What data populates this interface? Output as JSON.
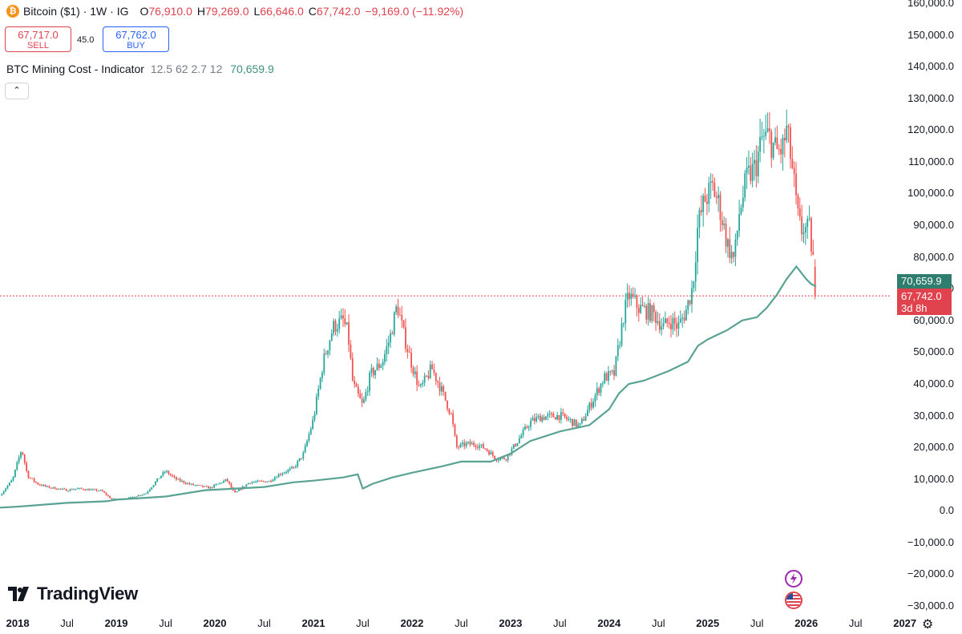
{
  "header": {
    "symbol": "Bitcoin ($1) · 1W · IG",
    "btc_glyph": "₿",
    "open_key": "O",
    "open": "76,910.0",
    "high_key": "H",
    "high": "79,269.0",
    "low_key": "L",
    "low": "66,646.0",
    "close_key": "C",
    "close": "67,742.0",
    "change": "−9,169.0 (−11.92%)"
  },
  "trade": {
    "sell_price": "67,717.0",
    "sell_label": "SELL",
    "spread": "45.0",
    "buy_price": "67,762.0",
    "buy_label": "BUY"
  },
  "indicator": {
    "name": "BTC Mining Cost - Indicator",
    "params": "12.5 62 2.7 12",
    "value": "70,659.9"
  },
  "collapse_glyph": "⌃",
  "logo_text": "TradingView",
  "settings_glyph": "⚙",
  "price_tags": {
    "indicator": "70,659.9",
    "last": "67,742.0",
    "countdown": "3d 8h"
  },
  "colors": {
    "up": "#26a69a",
    "down": "#ef5350",
    "mining_cost": "#5aa394",
    "last_price_line": "#e0434d"
  },
  "chart_data": {
    "type": "candlestick",
    "title": "Bitcoin ($1) · 1W · IG",
    "y_ticks": [
      "160,000.0",
      "150,000.0",
      "140,000.0",
      "130,000.0",
      "120,000.0",
      "110,000.0",
      "100,000.0",
      "90,000.0",
      "80,000.0",
      "70,000.0",
      "60,000.0",
      "50,000.0",
      "40,000.0",
      "30,000.0",
      "20,000.0",
      "10,000.0",
      "0.0",
      "−10,000.0",
      "−20,000.0",
      "−30,000.0"
    ],
    "y_tick_values": [
      160000,
      150000,
      140000,
      130000,
      120000,
      110000,
      100000,
      90000,
      80000,
      70000,
      60000,
      50000,
      40000,
      30000,
      20000,
      10000,
      0,
      -10000,
      -20000,
      -30000
    ],
    "ylim": [
      -31000,
      161000
    ],
    "x_range": [
      2017.82,
      2027.45
    ],
    "x_ticks": [
      {
        "label": "2018",
        "t": 2018.0,
        "year": true
      },
      {
        "label": "Jul",
        "t": 2018.5,
        "year": false
      },
      {
        "label": "2019",
        "t": 2019.0,
        "year": true
      },
      {
        "label": "Jul",
        "t": 2019.5,
        "year": false
      },
      {
        "label": "2020",
        "t": 2020.0,
        "year": true
      },
      {
        "label": "Jul",
        "t": 2020.5,
        "year": false
      },
      {
        "label": "2021",
        "t": 2021.0,
        "year": true
      },
      {
        "label": "Jul",
        "t": 2021.5,
        "year": false
      },
      {
        "label": "2022",
        "t": 2022.0,
        "year": true
      },
      {
        "label": "Jul",
        "t": 2022.5,
        "year": false
      },
      {
        "label": "2023",
        "t": 2023.0,
        "year": true
      },
      {
        "label": "Jul",
        "t": 2023.5,
        "year": false
      },
      {
        "label": "2024",
        "t": 2024.0,
        "year": true
      },
      {
        "label": "Jul",
        "t": 2024.5,
        "year": false
      },
      {
        "label": "2025",
        "t": 2025.0,
        "year": true
      },
      {
        "label": "Jul",
        "t": 2025.5,
        "year": false
      },
      {
        "label": "2026",
        "t": 2026.0,
        "year": true
      },
      {
        "label": "Jul",
        "t": 2026.5,
        "year": false
      },
      {
        "label": "2027",
        "t": 2027.0,
        "year": true
      }
    ],
    "last_price": 67742,
    "last_ohlc": {
      "open": 76910,
      "high": 79269,
      "low": 66646,
      "close": 67742
    },
    "price_path": [
      [
        2017.82,
        4800
      ],
      [
        2017.95,
        10000
      ],
      [
        2018.0,
        15500
      ],
      [
        2018.04,
        19500
      ],
      [
        2018.1,
        11000
      ],
      [
        2018.2,
        8500
      ],
      [
        2018.3,
        7500
      ],
      [
        2018.5,
        6500
      ],
      [
        2018.6,
        7000
      ],
      [
        2018.85,
        6300
      ],
      [
        2018.95,
        3700
      ],
      [
        2019.1,
        3800
      ],
      [
        2019.3,
        5500
      ],
      [
        2019.45,
        11000
      ],
      [
        2019.5,
        12500
      ],
      [
        2019.6,
        10000
      ],
      [
        2019.75,
        8300
      ],
      [
        2019.95,
        7200
      ],
      [
        2020.12,
        9800
      ],
      [
        2020.2,
        5500
      ],
      [
        2020.35,
        9000
      ],
      [
        2020.55,
        9300
      ],
      [
        2020.65,
        11500
      ],
      [
        2020.8,
        13500
      ],
      [
        2020.9,
        18000
      ],
      [
        2021.0,
        29000
      ],
      [
        2021.1,
        47000
      ],
      [
        2021.2,
        58000
      ],
      [
        2021.3,
        60000
      ],
      [
        2021.35,
        56000
      ],
      [
        2021.4,
        40000
      ],
      [
        2021.5,
        33000
      ],
      [
        2021.58,
        43000
      ],
      [
        2021.7,
        47000
      ],
      [
        2021.78,
        55000
      ],
      [
        2021.85,
        65000
      ],
      [
        2021.92,
        55000
      ],
      [
        2022.0,
        46000
      ],
      [
        2022.08,
        38000
      ],
      [
        2022.2,
        45000
      ],
      [
        2022.3,
        38000
      ],
      [
        2022.4,
        30000
      ],
      [
        2022.45,
        20000
      ],
      [
        2022.55,
        21000
      ],
      [
        2022.65,
        21000
      ],
      [
        2022.75,
        19500
      ],
      [
        2022.85,
        16500
      ],
      [
        2022.95,
        16500
      ],
      [
        2023.05,
        21000
      ],
      [
        2023.2,
        28000
      ],
      [
        2023.3,
        29500
      ],
      [
        2023.5,
        30000
      ],
      [
        2023.6,
        28500
      ],
      [
        2023.7,
        26500
      ],
      [
        2023.82,
        34000
      ],
      [
        2023.95,
        42000
      ],
      [
        2024.05,
        43000
      ],
      [
        2024.15,
        62000
      ],
      [
        2024.2,
        68000
      ],
      [
        2024.3,
        64000
      ],
      [
        2024.45,
        62000
      ],
      [
        2024.55,
        58000
      ],
      [
        2024.62,
        60000
      ],
      [
        2024.7,
        58000
      ],
      [
        2024.78,
        63000
      ],
      [
        2024.85,
        71000
      ],
      [
        2024.9,
        90000
      ],
      [
        2024.97,
        98000
      ],
      [
        2025.05,
        102000
      ],
      [
        2025.12,
        96000
      ],
      [
        2025.2,
        84000
      ],
      [
        2025.27,
        79000
      ],
      [
        2025.32,
        94000
      ],
      [
        2025.4,
        105000
      ],
      [
        2025.48,
        108000
      ],
      [
        2025.55,
        117000
      ],
      [
        2025.62,
        118000
      ],
      [
        2025.7,
        113000
      ],
      [
        2025.76,
        114000
      ],
      [
        2025.8,
        120000
      ],
      [
        2025.85,
        110000
      ],
      [
        2025.88,
        102000
      ],
      [
        2025.91,
        93000
      ],
      [
        2025.95,
        88000
      ],
      [
        2025.98,
        90000
      ],
      [
        2026.0,
        88000
      ],
      [
        2026.03,
        89000
      ],
      [
        2026.05,
        84000
      ],
      [
        2026.08,
        77000
      ],
      [
        2026.1,
        67742
      ]
    ],
    "mining_cost": [
      [
        2017.82,
        1000
      ],
      [
        2018.0,
        1300
      ],
      [
        2018.5,
        2500
      ],
      [
        2018.9,
        3000
      ],
      [
        2019.0,
        3500
      ],
      [
        2019.5,
        4500
      ],
      [
        2019.9,
        6500
      ],
      [
        2020.2,
        7000
      ],
      [
        2020.5,
        7500
      ],
      [
        2020.8,
        9000
      ],
      [
        2021.0,
        9500
      ],
      [
        2021.3,
        10500
      ],
      [
        2021.45,
        11500
      ],
      [
        2021.5,
        7000
      ],
      [
        2021.6,
        8500
      ],
      [
        2021.8,
        10500
      ],
      [
        2022.0,
        12000
      ],
      [
        2022.3,
        14000
      ],
      [
        2022.5,
        15500
      ],
      [
        2022.8,
        15500
      ],
      [
        2023.0,
        18000
      ],
      [
        2023.2,
        22000
      ],
      [
        2023.5,
        25000
      ],
      [
        2023.8,
        27000
      ],
      [
        2024.0,
        32000
      ],
      [
        2024.1,
        37000
      ],
      [
        2024.2,
        40000
      ],
      [
        2024.35,
        41000
      ],
      [
        2024.6,
        44000
      ],
      [
        2024.8,
        47000
      ],
      [
        2024.9,
        52000
      ],
      [
        2025.0,
        54000
      ],
      [
        2025.2,
        57000
      ],
      [
        2025.35,
        60000
      ],
      [
        2025.5,
        61000
      ],
      [
        2025.6,
        64000
      ],
      [
        2025.7,
        68000
      ],
      [
        2025.8,
        73000
      ],
      [
        2025.9,
        77000
      ],
      [
        2025.95,
        75000
      ],
      [
        2026.0,
        73000
      ],
      [
        2026.05,
        71500
      ],
      [
        2026.1,
        70659.9
      ]
    ]
  }
}
